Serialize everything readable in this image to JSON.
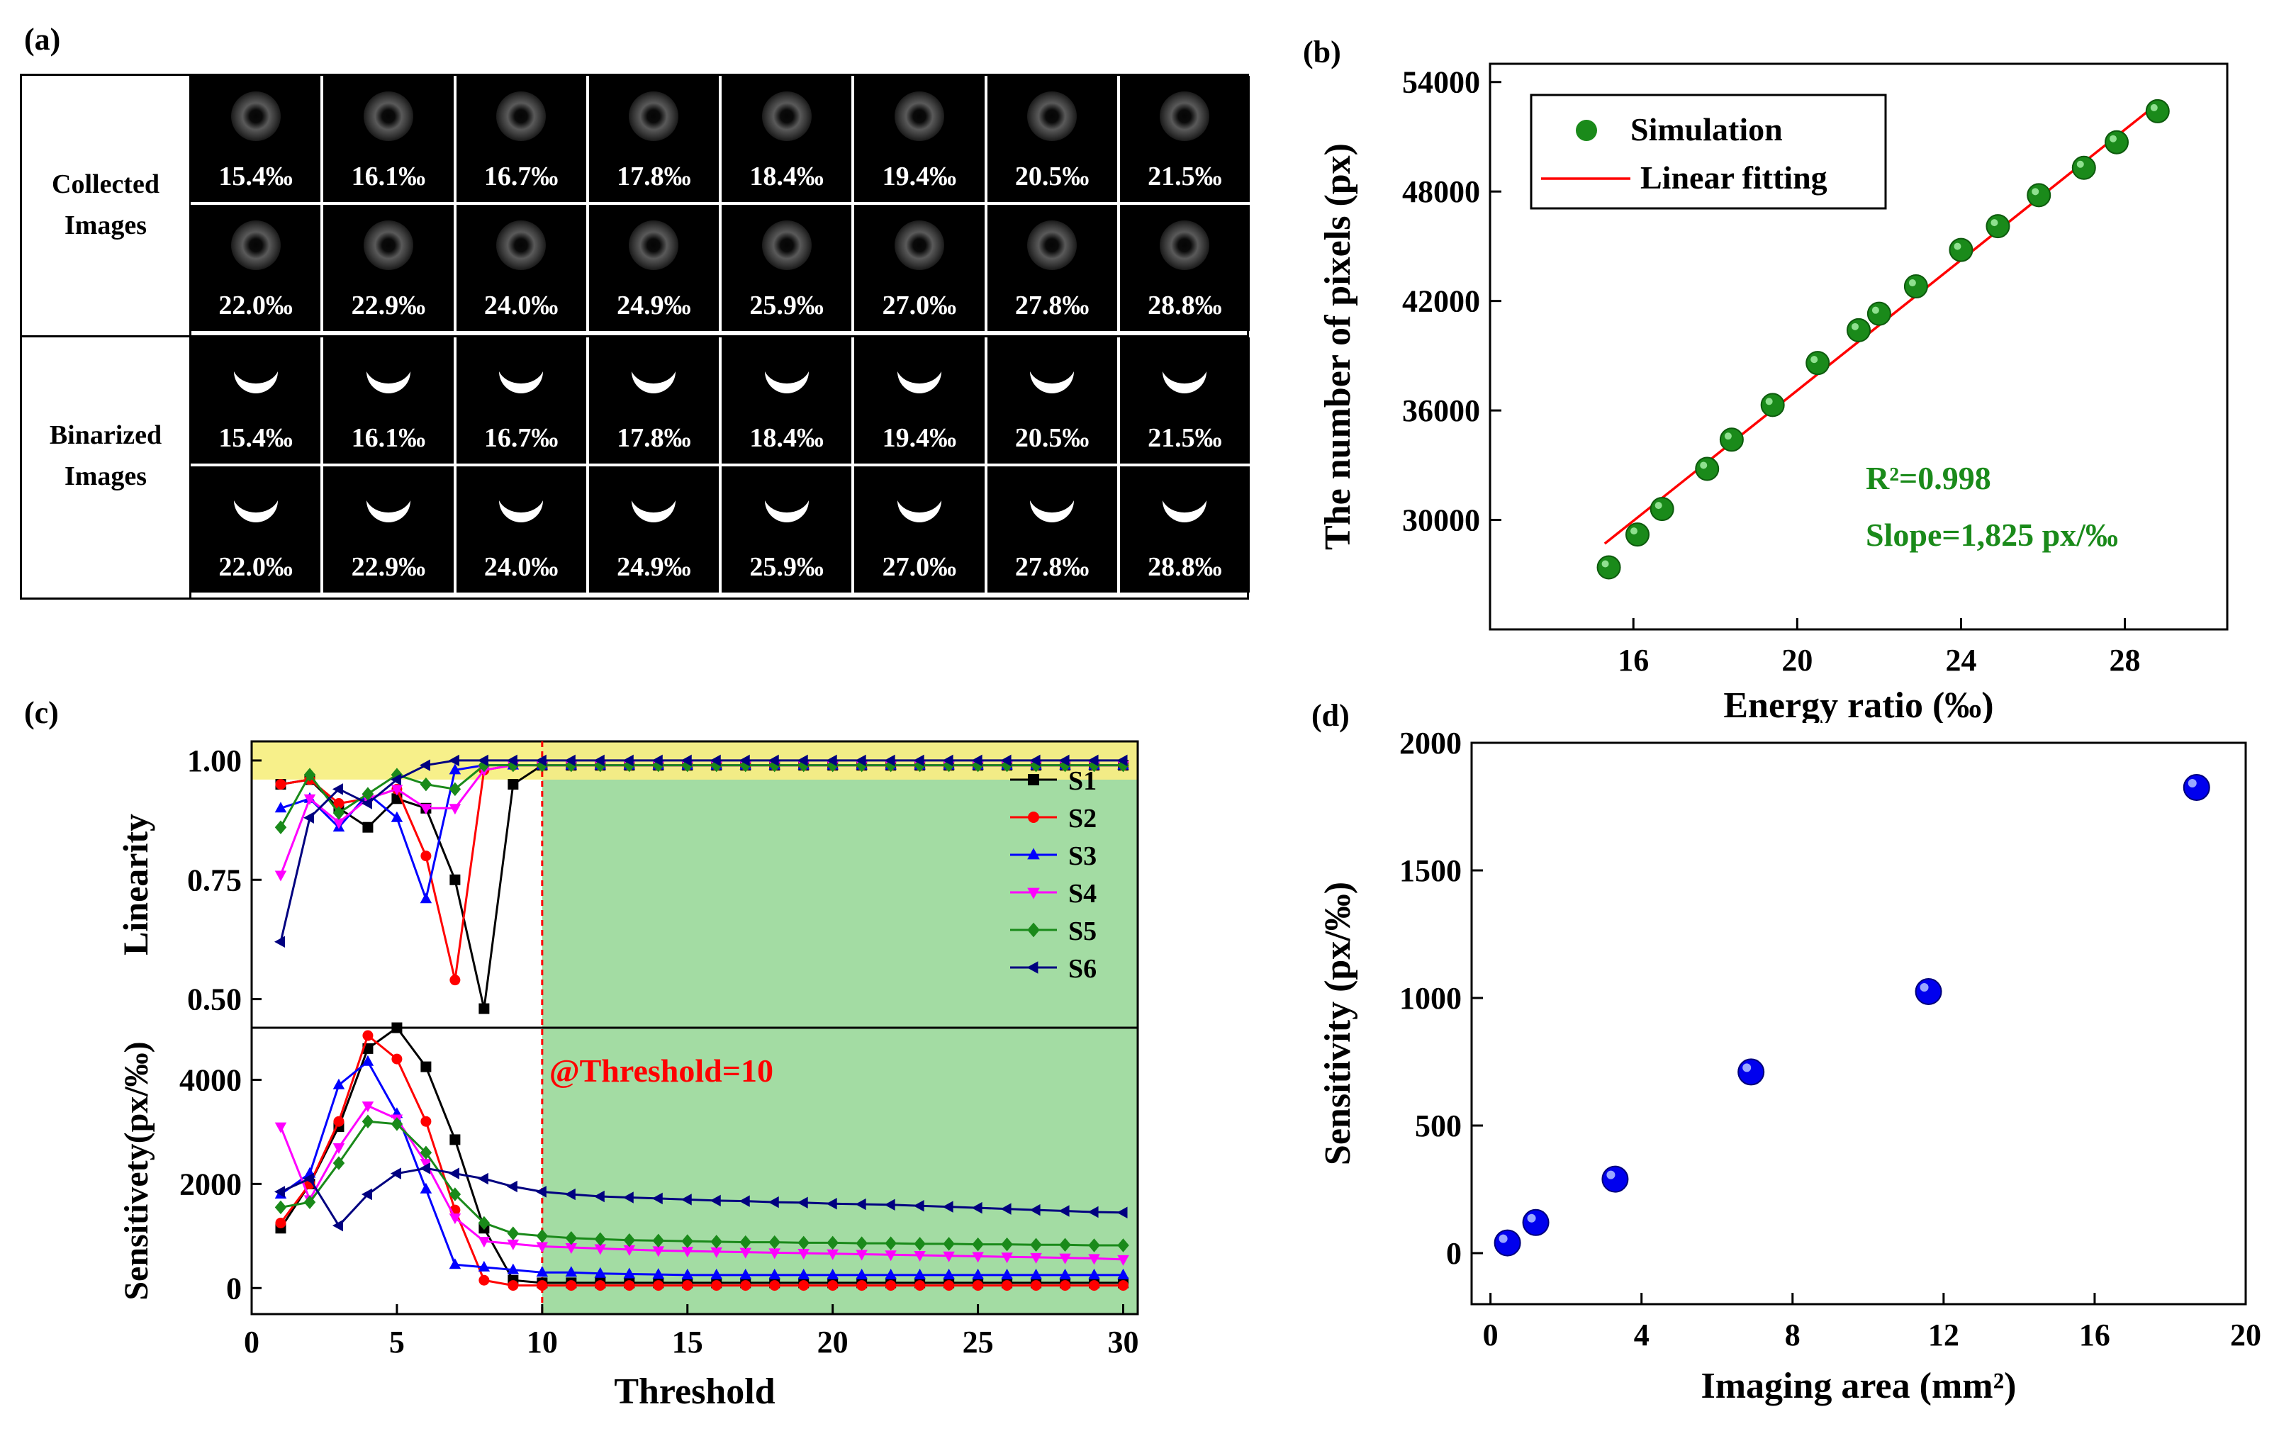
{
  "panel_labels": {
    "a": "(a)",
    "b": "(b)",
    "c": "(c)",
    "d": "(d)"
  },
  "panel_a": {
    "collected_label": [
      "Collected",
      "Images"
    ],
    "binarized_label": [
      "Binarized",
      "Images"
    ],
    "ratios_row1": [
      "15.4‰",
      "16.1‰",
      "16.7‰",
      "17.8‰",
      "18.4‰",
      "19.4‰",
      "20.5‰",
      "21.5‰"
    ],
    "ratios_row2": [
      "22.0‰",
      "22.9‰",
      "24.0‰",
      "24.9‰",
      "25.9‰",
      "27.0‰",
      "27.8‰",
      "28.8‰"
    ]
  },
  "chart_data": [
    {
      "panel": "b",
      "type": "scatter",
      "xlabel": "Energy ratio (‰)",
      "ylabel": "The number of pixels (px)",
      "xlim": [
        12.5,
        30.5
      ],
      "ylim": [
        24000,
        55000
      ],
      "xticks": [
        16,
        20,
        24,
        28
      ],
      "yticks": [
        30000,
        36000,
        42000,
        48000,
        54000
      ],
      "series": [
        {
          "name": "Simulation",
          "color": "#1a8a1a",
          "x": [
            15.4,
            16.1,
            16.7,
            17.8,
            18.4,
            19.4,
            20.5,
            21.5,
            22.0,
            22.9,
            24.0,
            24.9,
            25.9,
            27.0,
            27.8,
            28.8
          ],
          "y": [
            27400,
            29200,
            30600,
            32800,
            34400,
            36300,
            38600,
            40400,
            41300,
            42800,
            44800,
            46100,
            47800,
            49300,
            50700,
            52400
          ]
        }
      ],
      "fit": {
        "name": "Linear fitting",
        "color": "#ff0000",
        "x": [
          15.3,
          28.9
        ],
        "y": [
          28700,
          53000
        ]
      },
      "legend": [
        "Simulation",
        "Linear fitting"
      ],
      "annotations": [
        "R²=0.998",
        "Slope=1,825 px/‰"
      ]
    },
    {
      "panel": "c",
      "type": "line",
      "xlabel": "Threshold",
      "xlim": [
        0,
        30.5
      ],
      "xticks": [
        0,
        5,
        10,
        15,
        20,
        25,
        30
      ],
      "threshold_marker": 10,
      "threshold_annotation": "@Threshold=10",
      "top": {
        "ylabel": "Linearity",
        "ylim": [
          0.44,
          1.04
        ],
        "yticks": [
          0.5,
          0.75,
          1.0
        ],
        "ytick_labels": [
          "0.50",
          "0.75",
          "1.00"
        ],
        "series": [
          {
            "name": "S1",
            "color": "#000000",
            "marker": "square",
            "x": [
              1,
              2,
              3,
              4,
              5,
              6,
              7,
              8,
              9,
              10,
              11,
              12,
              13,
              14,
              15,
              16,
              17,
              18,
              19,
              20,
              21,
              22,
              23,
              24,
              25,
              26,
              27,
              28,
              29,
              30
            ],
            "y": [
              0.95,
              0.96,
              0.9,
              0.86,
              0.92,
              0.9,
              0.75,
              0.48,
              0.95,
              0.99,
              0.99,
              0.99,
              0.99,
              0.99,
              0.99,
              0.99,
              0.99,
              0.99,
              0.99,
              0.99,
              0.99,
              0.99,
              0.99,
              0.99,
              0.99,
              0.99,
              0.99,
              0.99,
              0.99,
              0.99
            ]
          },
          {
            "name": "S2",
            "color": "#ff0000",
            "marker": "circle",
            "x": [
              1,
              2,
              3,
              4,
              5,
              6,
              7,
              8,
              9,
              10,
              11,
              12,
              13,
              14,
              15,
              16,
              17,
              18,
              19,
              20,
              21,
              22,
              23,
              24,
              25,
              26,
              27,
              28,
              29,
              30
            ],
            "y": [
              0.95,
              0.96,
              0.91,
              0.92,
              0.94,
              0.8,
              0.54,
              0.98,
              0.99,
              0.99,
              0.99,
              0.99,
              0.99,
              0.99,
              0.99,
              0.99,
              0.99,
              0.99,
              0.99,
              0.99,
              0.99,
              0.99,
              0.99,
              0.99,
              0.99,
              0.99,
              0.99,
              0.99,
              0.99,
              0.99
            ]
          },
          {
            "name": "S3",
            "color": "#0000ff",
            "marker": "triangle-up",
            "x": [
              1,
              2,
              3,
              4,
              5,
              6,
              7,
              8,
              9,
              10,
              11,
              12,
              13,
              14,
              15,
              16,
              17,
              18,
              19,
              20,
              21,
              22,
              23,
              24,
              25,
              26,
              27,
              28,
              29,
              30
            ],
            "y": [
              0.9,
              0.92,
              0.86,
              0.93,
              0.88,
              0.71,
              0.98,
              0.99,
              0.99,
              0.99,
              0.99,
              0.99,
              0.99,
              0.99,
              0.99,
              0.99,
              0.99,
              0.99,
              0.99,
              0.99,
              0.99,
              0.99,
              0.99,
              0.99,
              0.99,
              0.99,
              0.99,
              0.99,
              0.99,
              0.99
            ]
          },
          {
            "name": "S4",
            "color": "#ff00ff",
            "marker": "triangle-down",
            "x": [
              1,
              2,
              3,
              4,
              5,
              6,
              7,
              8,
              9,
              10,
              11,
              12,
              13,
              14,
              15,
              16,
              17,
              18,
              19,
              20,
              21,
              22,
              23,
              24,
              25,
              26,
              27,
              28,
              29,
              30
            ],
            "y": [
              0.76,
              0.92,
              0.87,
              0.92,
              0.94,
              0.9,
              0.9,
              0.98,
              0.99,
              0.99,
              0.99,
              0.99,
              0.99,
              0.99,
              0.99,
              0.99,
              0.99,
              0.99,
              0.99,
              0.99,
              0.99,
              0.99,
              0.99,
              0.99,
              0.99,
              0.99,
              0.99,
              0.99,
              0.99,
              0.99
            ]
          },
          {
            "name": "S5",
            "color": "#1a8a1a",
            "marker": "diamond",
            "x": [
              1,
              2,
              3,
              4,
              5,
              6,
              7,
              8,
              9,
              10,
              11,
              12,
              13,
              14,
              15,
              16,
              17,
              18,
              19,
              20,
              21,
              22,
              23,
              24,
              25,
              26,
              27,
              28,
              29,
              30
            ],
            "y": [
              0.86,
              0.97,
              0.89,
              0.93,
              0.97,
              0.95,
              0.94,
              0.99,
              0.99,
              0.99,
              0.99,
              0.99,
              0.99,
              0.99,
              0.99,
              0.99,
              0.99,
              0.99,
              0.99,
              0.99,
              0.99,
              0.99,
              0.99,
              0.99,
              0.99,
              0.99,
              0.99,
              0.99,
              0.99,
              0.99
            ]
          },
          {
            "name": "S6",
            "color": "#000080",
            "marker": "triangle-left",
            "x": [
              1,
              2,
              3,
              4,
              5,
              6,
              7,
              8,
              9,
              10,
              11,
              12,
              13,
              14,
              15,
              16,
              17,
              18,
              19,
              20,
              21,
              22,
              23,
              24,
              25,
              26,
              27,
              28,
              29,
              30
            ],
            "y": [
              0.62,
              0.88,
              0.94,
              0.91,
              0.96,
              0.99,
              1.0,
              1.0,
              1.0,
              1.0,
              1.0,
              1.0,
              1.0,
              1.0,
              1.0,
              1.0,
              1.0,
              1.0,
              1.0,
              1.0,
              1.0,
              1.0,
              1.0,
              1.0,
              1.0,
              1.0,
              1.0,
              1.0,
              1.0,
              1.0
            ]
          }
        ]
      },
      "bottom": {
        "ylabel": "Sensitivety(px/‰)",
        "ylim": [
          -500,
          5000
        ],
        "yticks": [
          0,
          2000,
          4000
        ],
        "series": [
          {
            "name": "S1",
            "color": "#000000",
            "marker": "square",
            "x": [
              1,
              2,
              3,
              4,
              5,
              6,
              7,
              8,
              9,
              10,
              11,
              12,
              13,
              14,
              15,
              16,
              17,
              18,
              19,
              20,
              21,
              22,
              23,
              24,
              25,
              26,
              27,
              28,
              29,
              30
            ],
            "y": [
              1150,
              2000,
              3100,
              4600,
              5000,
              4250,
              2850,
              1150,
              150,
              100,
              100,
              100,
              100,
              100,
              100,
              100,
              100,
              100,
              100,
              100,
              100,
              100,
              100,
              100,
              100,
              100,
              100,
              100,
              100,
              100
            ]
          },
          {
            "name": "S2",
            "color": "#ff0000",
            "marker": "circle",
            "x": [
              1,
              2,
              3,
              4,
              5,
              6,
              7,
              8,
              9,
              10,
              11,
              12,
              13,
              14,
              15,
              16,
              17,
              18,
              19,
              20,
              21,
              22,
              23,
              24,
              25,
              26,
              27,
              28,
              29,
              30
            ],
            "y": [
              1250,
              2000,
              3200,
              4850,
              4400,
              3200,
              1500,
              150,
              50,
              50,
              50,
              50,
              50,
              50,
              50,
              50,
              50,
              50,
              50,
              50,
              50,
              50,
              50,
              50,
              50,
              50,
              50,
              50,
              50,
              50
            ]
          },
          {
            "name": "S3",
            "color": "#0000ff",
            "marker": "triangle-up",
            "x": [
              1,
              2,
              3,
              4,
              5,
              6,
              7,
              8,
              9,
              10,
              11,
              12,
              13,
              14,
              15,
              16,
              17,
              18,
              19,
              20,
              21,
              22,
              23,
              24,
              25,
              26,
              27,
              28,
              29,
              30
            ],
            "y": [
              1800,
              2200,
              3900,
              4350,
              3350,
              1900,
              450,
              400,
              350,
              300,
              300,
              280,
              270,
              260,
              250,
              250,
              250,
              250,
              250,
              250,
              250,
              250,
              250,
              250,
              250,
              250,
              250,
              250,
              250,
              250
            ]
          },
          {
            "name": "S4",
            "color": "#ff00ff",
            "marker": "triangle-down",
            "x": [
              1,
              2,
              3,
              4,
              5,
              6,
              7,
              8,
              9,
              10,
              11,
              12,
              13,
              14,
              15,
              16,
              17,
              18,
              19,
              20,
              21,
              22,
              23,
              24,
              25,
              26,
              27,
              28,
              29,
              30
            ],
            "y": [
              3100,
              1700,
              2700,
              3500,
              3250,
              2400,
              1350,
              900,
              850,
              800,
              780,
              760,
              740,
              720,
              710,
              700,
              690,
              680,
              670,
              660,
              650,
              640,
              630,
              620,
              610,
              600,
              590,
              580,
              570,
              550
            ]
          },
          {
            "name": "S5",
            "color": "#1a8a1a",
            "marker": "diamond",
            "x": [
              1,
              2,
              3,
              4,
              5,
              6,
              7,
              8,
              9,
              10,
              11,
              12,
              13,
              14,
              15,
              16,
              17,
              18,
              19,
              20,
              21,
              22,
              23,
              24,
              25,
              26,
              27,
              28,
              29,
              30
            ],
            "y": [
              1550,
              1650,
              2400,
              3200,
              3150,
              2600,
              1800,
              1250,
              1050,
              1000,
              960,
              940,
              920,
              910,
              900,
              890,
              880,
              880,
              870,
              870,
              860,
              860,
              850,
              850,
              840,
              840,
              830,
              830,
              820,
              820
            ]
          },
          {
            "name": "S6",
            "color": "#000080",
            "marker": "triangle-left",
            "x": [
              1,
              2,
              3,
              4,
              5,
              6,
              7,
              8,
              9,
              10,
              11,
              12,
              13,
              14,
              15,
              16,
              17,
              18,
              19,
              20,
              21,
              22,
              23,
              24,
              25,
              26,
              27,
              28,
              29,
              30
            ],
            "y": [
              1850,
              2100,
              1200,
              1800,
              2200,
              2300,
              2200,
              2100,
              1950,
              1850,
              1800,
              1760,
              1740,
              1720,
              1700,
              1680,
              1670,
              1650,
              1640,
              1620,
              1610,
              1600,
              1580,
              1560,
              1540,
              1520,
              1500,
              1480,
              1460,
              1450
            ]
          }
        ]
      }
    },
    {
      "panel": "d",
      "type": "scatter",
      "xlabel": "Imaging area (mm²)",
      "ylabel": "Sensitivity (px/‰)",
      "xlim": [
        -0.5,
        20
      ],
      "ylim": [
        -200,
        2000
      ],
      "xticks": [
        0,
        4,
        8,
        12,
        16,
        20
      ],
      "yticks": [
        0,
        500,
        1000,
        1500,
        2000
      ],
      "series": [
        {
          "color": "#0000ee",
          "x": [
            0.45,
            1.2,
            3.3,
            6.9,
            11.6,
            18.7
          ],
          "y": [
            40,
            120,
            290,
            710,
            1025,
            1825
          ]
        }
      ]
    }
  ]
}
